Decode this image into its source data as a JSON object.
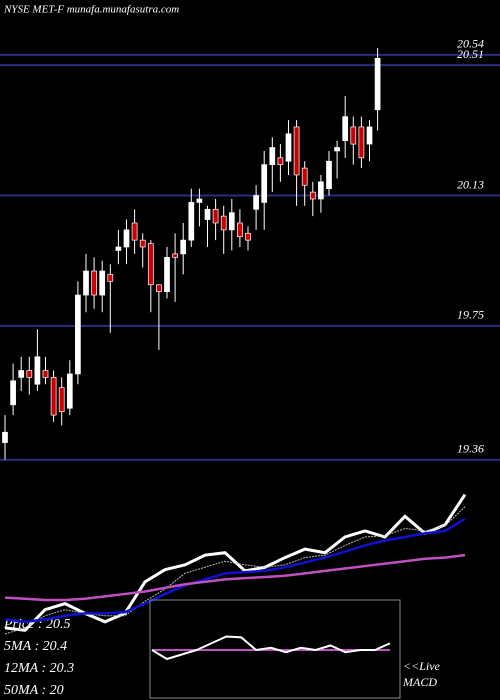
{
  "chart_data": [
    {
      "type": "candlestick",
      "title": "NYSE MET-F munafa.munafasutra.com",
      "ylim": [
        19.33,
        20.7
      ],
      "yticks": [
        20.54,
        20.51,
        20.13,
        19.75,
        19.36
      ],
      "grid": true,
      "up_color": "#ffffff",
      "down_color": "#cc0000",
      "grid_color": "#2c2c80",
      "open": [
        19.41,
        19.52,
        19.6,
        19.62,
        19.58,
        19.62,
        19.6,
        19.57,
        19.51,
        19.61,
        19.84,
        19.91,
        19.84,
        19.9,
        19.97,
        19.98,
        20.05,
        20.0,
        19.99,
        19.87,
        19.85,
        19.96,
        19.96,
        20.0,
        20.11,
        20.06,
        20.09,
        20.07,
        20.03,
        20.05,
        20.02,
        20.09,
        20.11,
        20.22,
        20.24,
        20.23,
        20.33,
        20.21,
        20.14,
        20.12,
        20.15,
        20.26,
        20.29,
        20.33,
        20.33,
        20.28,
        20.38
      ],
      "high": [
        19.49,
        19.64,
        19.66,
        19.66,
        19.74,
        19.66,
        19.62,
        19.6,
        19.65,
        19.88,
        19.96,
        19.95,
        19.94,
        19.93,
        20.03,
        20.06,
        20.09,
        20.02,
        20.0,
        19.87,
        19.98,
        20.02,
        20.05,
        20.15,
        20.15,
        20.1,
        20.12,
        20.1,
        20.12,
        20.09,
        20.04,
        20.16,
        20.26,
        20.3,
        20.28,
        20.35,
        20.35,
        20.23,
        20.17,
        20.19,
        20.26,
        20.29,
        20.42,
        20.36,
        20.36,
        20.35,
        20.56
      ],
      "low": [
        19.36,
        19.49,
        19.56,
        19.55,
        19.56,
        19.58,
        19.47,
        19.46,
        19.49,
        19.58,
        19.79,
        19.8,
        19.79,
        19.73,
        19.93,
        19.93,
        19.96,
        19.92,
        19.79,
        19.68,
        19.83,
        19.82,
        19.9,
        19.98,
        20.04,
        19.98,
        20.0,
        19.96,
        19.97,
        19.98,
        19.97,
        20.03,
        20.03,
        20.14,
        20.17,
        20.19,
        20.1,
        20.1,
        20.07,
        20.08,
        20.13,
        20.18,
        20.24,
        20.22,
        20.21,
        20.23,
        20.32
      ],
      "close": [
        19.44,
        19.59,
        19.62,
        19.6,
        19.66,
        19.6,
        19.49,
        19.5,
        19.61,
        19.84,
        19.91,
        19.84,
        19.91,
        19.88,
        19.98,
        20.03,
        20.0,
        19.98,
        19.87,
        19.85,
        19.95,
        19.95,
        20.0,
        20.11,
        20.12,
        20.09,
        20.05,
        20.03,
        20.08,
        20.01,
        20.0,
        20.13,
        20.22,
        20.27,
        20.22,
        20.31,
        20.19,
        20.16,
        20.12,
        20.17,
        20.23,
        20.27,
        20.36,
        20.28,
        20.24,
        20.33,
        20.53
      ]
    },
    {
      "type": "line",
      "ylim": [
        19.3,
        20.62
      ],
      "series": [
        {
          "name": "Price   : 20.5",
          "color": "#ffffff",
          "values": [
            19.4,
            19.38,
            19.55,
            19.6,
            19.52,
            19.45,
            19.52,
            19.78,
            19.88,
            19.92,
            20.0,
            20.02,
            19.87,
            19.9,
            19.98,
            20.05,
            20.02,
            20.15,
            20.2,
            20.15,
            20.32,
            20.18,
            20.25,
            20.5
          ]
        },
        {
          "name": "5MA   : 20.4",
          "color": "#bbbbbb",
          "values": [
            19.35,
            19.4,
            19.5,
            19.55,
            19.52,
            19.5,
            19.5,
            19.62,
            19.72,
            19.85,
            19.9,
            19.95,
            19.92,
            19.9,
            19.92,
            19.98,
            20.0,
            20.08,
            20.15,
            20.16,
            20.22,
            20.2,
            20.24,
            20.4
          ]
        },
        {
          "name": "12MA : 20.3",
          "color": "#1010d0",
          "values": [
            19.47,
            19.45,
            19.47,
            19.5,
            19.52,
            19.52,
            19.53,
            19.6,
            19.68,
            19.75,
            19.8,
            19.85,
            19.86,
            19.87,
            19.9,
            19.94,
            19.98,
            20.03,
            20.08,
            20.12,
            20.15,
            20.18,
            20.2,
            20.3
          ]
        },
        {
          "name": "50MA : 20",
          "color": "#c050c0",
          "values": [
            19.65,
            19.64,
            19.63,
            19.63,
            19.64,
            19.66,
            19.68,
            19.7,
            19.73,
            19.76,
            19.78,
            19.8,
            19.81,
            19.82,
            19.83,
            19.85,
            19.87,
            19.89,
            19.91,
            19.93,
            19.95,
            19.97,
            19.98,
            20.0
          ]
        }
      ]
    },
    {
      "type": "macd",
      "ylim": [
        -1,
        1
      ],
      "label_lines": [
        "<<Live",
        "MACD"
      ],
      "series": [
        {
          "color": "#ffffff",
          "values": [
            0.0,
            -0.2,
            -0.1,
            0.0,
            0.15,
            0.3,
            0.28,
            0.0,
            0.05,
            -0.05,
            0.05,
            0.0,
            0.1,
            -0.05,
            0.0,
            0.0,
            0.15
          ]
        },
        {
          "color": "#c050c0",
          "values": [
            0,
            0,
            0,
            0,
            0,
            0,
            0,
            0,
            0,
            0,
            0,
            0,
            0,
            0,
            0,
            0,
            0
          ]
        }
      ]
    }
  ]
}
